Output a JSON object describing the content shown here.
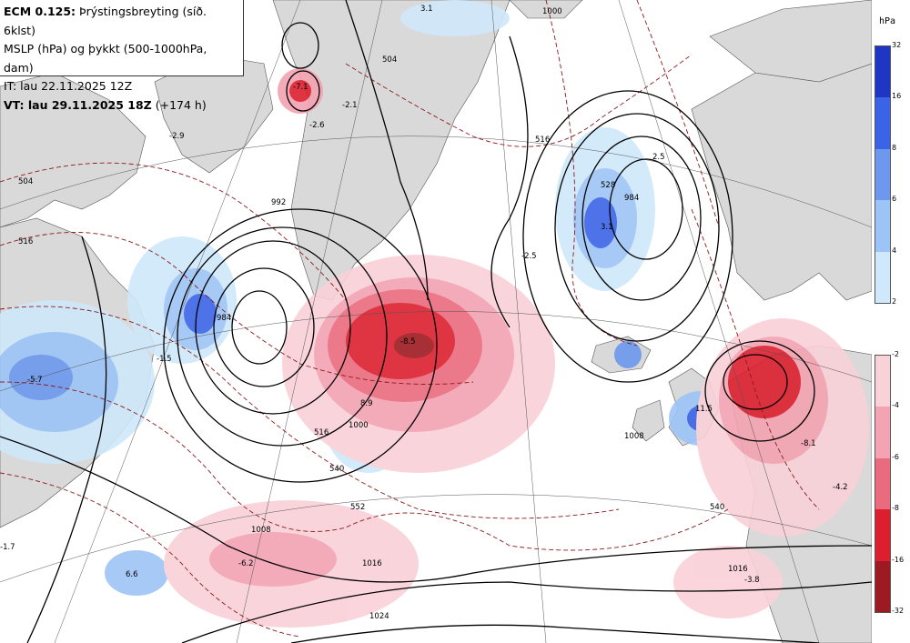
{
  "title": {
    "model": "ECM 0.125:",
    "field": "Þrýstingsbreyting (síð. 6klst)",
    "line2": "MSLP (hPa) og þykkt (500-1000hPa, dam)",
    "line3": "IT: lau 22.11.2025 12Z",
    "line4_bold": "VT: lau 29.11.2025 18Z",
    "line4_rest": "(+174 h)"
  },
  "legend": {
    "unit": "hPa",
    "positive_ticks": [
      "32",
      "16",
      "8",
      "6",
      "4",
      "2"
    ],
    "negative_ticks": [
      "-2",
      "-4",
      "-6",
      "-8",
      "-16",
      "-32"
    ],
    "positive_colors": [
      "#1f35c4",
      "#3b63e6",
      "#6d98ee",
      "#9dc4f6",
      "#cfe8fb"
    ],
    "negative_colors": [
      "#f9d1d8",
      "#f3a3b2",
      "#ea6b7e",
      "#dc1f2e",
      "#9e1a22"
    ]
  },
  "map_labels": {
    "mslp": [
      "1000",
      "984",
      "984",
      "992",
      "1008",
      "1016",
      "1024",
      "1008",
      "1016",
      "1000",
      "1000",
      "992"
    ],
    "thickness": [
      "504",
      "516",
      "528",
      "540",
      "552",
      "516",
      "528",
      "540",
      "516",
      "528"
    ],
    "tendency": [
      "3.1",
      "-2.6",
      "-2.1",
      "-2.9",
      "2.5",
      "3.1",
      "-2.5",
      "-2.5",
      "3.1",
      "-5.7",
      "-8.5",
      "8.9",
      "-6.2",
      "6.6",
      "11.5",
      "-8.1",
      "-4.2",
      "-3.8",
      "-1.7",
      "-1.5",
      "-7.1"
    ]
  },
  "colors": {
    "land": "#d9d9d9",
    "sea": "#ffffff",
    "isobar": "#000000",
    "thickness": "#8b1a1a"
  }
}
